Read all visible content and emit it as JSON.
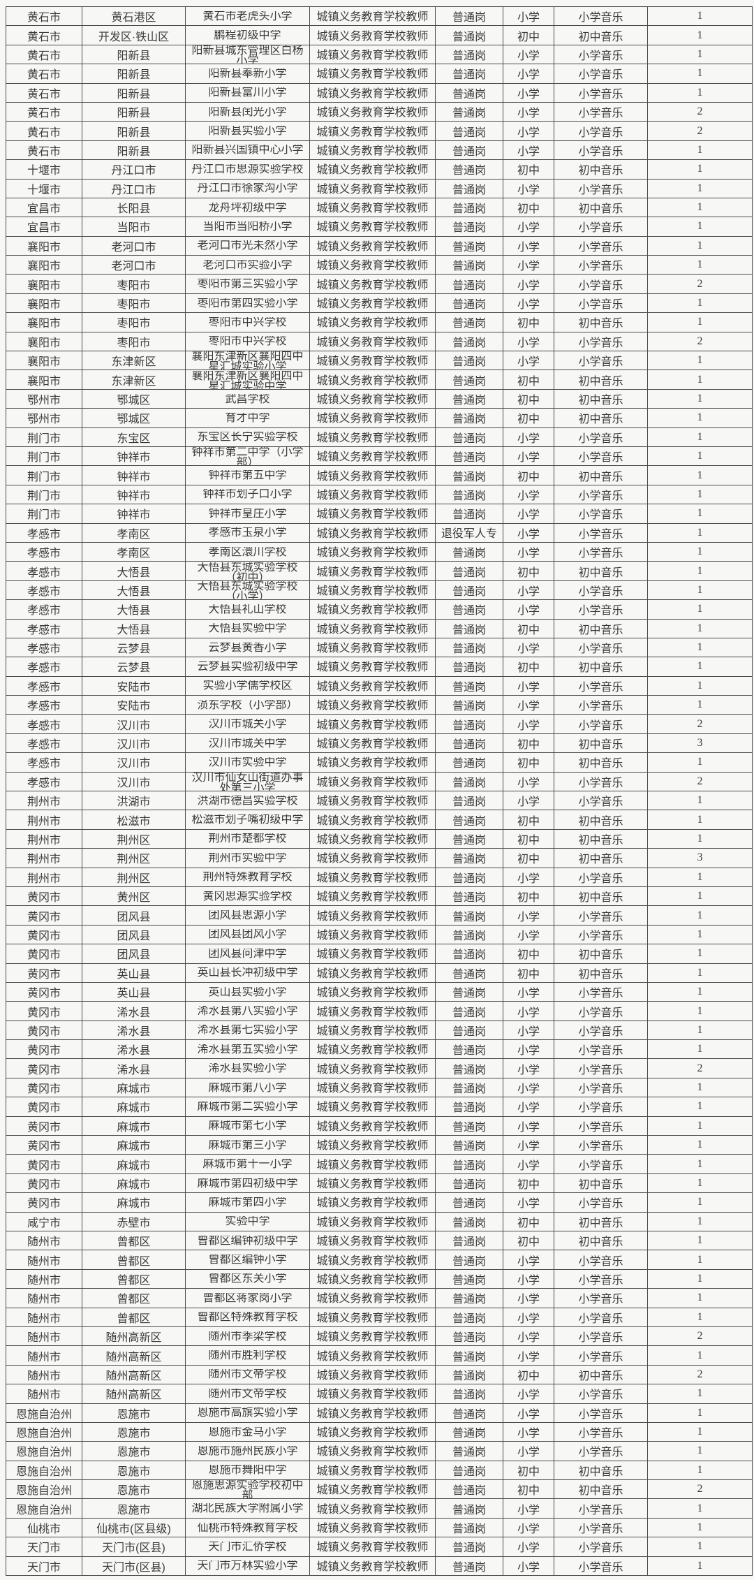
{
  "colors": {
    "background": "#f7f7f5",
    "grid_line": "#4b4b4b",
    "text": "#3a3a3a"
  },
  "table": {
    "column_keys": [
      "city",
      "district",
      "school",
      "category",
      "post_type",
      "level",
      "subject",
      "count"
    ],
    "rows": [
      [
        "黄石市",
        "黄石港区",
        "黄石市老虎头小学",
        "城镇义务教育学校教师岗",
        "普通岗",
        "小学",
        "小学音乐",
        "1"
      ],
      [
        "黄石市",
        "开发区·铁山区",
        "鹏程初级中学",
        "城镇义务教育学校教师岗",
        "普通岗",
        "初中",
        "初中音乐",
        "1"
      ],
      [
        "黄石市",
        "阳新县",
        "阳新县城东管理区白杨小学",
        "城镇义务教育学校教师岗",
        "普通岗",
        "小学",
        "小学音乐",
        "1"
      ],
      [
        "黄石市",
        "阳新县",
        "阳新县奉新小学",
        "城镇义务教育学校教师岗",
        "普通岗",
        "小学",
        "小学音乐",
        "1"
      ],
      [
        "黄石市",
        "阳新县",
        "阳新县富川小学",
        "城镇义务教育学校教师岗",
        "普通岗",
        "小学",
        "小学音乐",
        "1"
      ],
      [
        "黄石市",
        "阳新县",
        "阳新县闰光小学",
        "城镇义务教育学校教师岗",
        "普通岗",
        "小学",
        "小学音乐",
        "2"
      ],
      [
        "黄石市",
        "阳新县",
        "阳新县实验小学",
        "城镇义务教育学校教师岗",
        "普通岗",
        "小学",
        "小学音乐",
        "2"
      ],
      [
        "黄石市",
        "阳新县",
        "阳新县兴国镇中心小学",
        "城镇义务教育学校教师岗",
        "普通岗",
        "小学",
        "小学音乐",
        "1"
      ],
      [
        "十堰市",
        "丹江口市",
        "丹江口市思源实验学校",
        "城镇义务教育学校教师岗",
        "普通岗",
        "初中",
        "初中音乐",
        "1"
      ],
      [
        "十堰市",
        "丹江口市",
        "丹江口市徐家沟小学",
        "城镇义务教育学校教师岗",
        "普通岗",
        "小学",
        "小学音乐",
        "1"
      ],
      [
        "宜昌市",
        "长阳县",
        "龙舟坪初级中学",
        "城镇义务教育学校教师岗",
        "普通岗",
        "初中",
        "初中音乐",
        "1"
      ],
      [
        "宜昌市",
        "当阳市",
        "当阳市当阳桥小学",
        "城镇义务教育学校教师岗",
        "普通岗",
        "小学",
        "小学音乐",
        "1"
      ],
      [
        "襄阳市",
        "老河口市",
        "老河口市光未然小学",
        "城镇义务教育学校教师岗",
        "普通岗",
        "小学",
        "小学音乐",
        "1"
      ],
      [
        "襄阳市",
        "老河口市",
        "老河口市实验小学",
        "城镇义务教育学校教师岗",
        "普通岗",
        "小学",
        "小学音乐",
        "1"
      ],
      [
        "襄阳市",
        "枣阳市",
        "枣阳市第三实验小学",
        "城镇义务教育学校教师岗",
        "普通岗",
        "小学",
        "小学音乐",
        "2"
      ],
      [
        "襄阳市",
        "枣阳市",
        "枣阳市第四实验小学",
        "城镇义务教育学校教师岗",
        "普通岗",
        "小学",
        "小学音乐",
        "1"
      ],
      [
        "襄阳市",
        "枣阳市",
        "枣阳市中兴学校",
        "城镇义务教育学校教师岗",
        "普通岗",
        "初中",
        "初中音乐",
        "1"
      ],
      [
        "襄阳市",
        "枣阳市",
        "枣阳市中兴学校",
        "城镇义务教育学校教师岗",
        "普通岗",
        "小学",
        "小学音乐",
        "2"
      ],
      [
        "襄阳市",
        "东津新区",
        "襄阳东津新区襄阳四中星汇城实验小学",
        "城镇义务教育学校教师岗",
        "普通岗",
        "小学",
        "小学音乐",
        "1"
      ],
      [
        "襄阳市",
        "东津新区",
        "襄阳东津新区襄阳四中星汇城实验中学",
        "城镇义务教育学校教师岗",
        "普通岗",
        "初中",
        "初中音乐",
        "1"
      ],
      [
        "鄂州市",
        "鄂城区",
        "武昌学校",
        "城镇义务教育学校教师岗",
        "普通岗",
        "初中",
        "初中音乐",
        "1"
      ],
      [
        "鄂州市",
        "鄂城区",
        "育才中学",
        "城镇义务教育学校教师岗",
        "普通岗",
        "初中",
        "初中音乐",
        "1"
      ],
      [
        "荆门市",
        "东宝区",
        "东宝区长宁实验学校",
        "城镇义务教育学校教师岗",
        "普通岗",
        "小学",
        "小学音乐",
        "1"
      ],
      [
        "荆门市",
        "钟祥市",
        "钟祥市第二中学（小学部）",
        "城镇义务教育学校教师岗",
        "普通岗",
        "小学",
        "小学音乐",
        "1"
      ],
      [
        "荆门市",
        "钟祥市",
        "钟祥市第五中学",
        "城镇义务教育学校教师岗",
        "普通岗",
        "初中",
        "初中音乐",
        "1"
      ],
      [
        "荆门市",
        "钟祥市",
        "钟祥市划子口小学",
        "城镇义务教育学校教师岗",
        "普通岗",
        "小学",
        "小学音乐",
        "1"
      ],
      [
        "荆门市",
        "钟祥市",
        "钟祥市皇庄小学",
        "城镇义务教育学校教师岗",
        "普通岗",
        "小学",
        "小学音乐",
        "1"
      ],
      [
        "孝感市",
        "孝南区",
        "孝感市玉泉小学",
        "城镇义务教育学校教师岗",
        "退役军人专岗",
        "小学",
        "小学音乐",
        "1"
      ],
      [
        "孝感市",
        "孝南区",
        "孝南区澴川学校",
        "城镇义务教育学校教师岗",
        "普通岗",
        "小学",
        "小学音乐",
        "1"
      ],
      [
        "孝感市",
        "大悟县",
        "大悟县东城实验学校（初中）",
        "城镇义务教育学校教师岗",
        "普通岗",
        "初中",
        "初中音乐",
        "1"
      ],
      [
        "孝感市",
        "大悟县",
        "大悟县东城实验学校（小学）",
        "城镇义务教育学校教师岗",
        "普通岗",
        "小学",
        "小学音乐",
        "1"
      ],
      [
        "孝感市",
        "大悟县",
        "大悟县礼山学校",
        "城镇义务教育学校教师岗",
        "普通岗",
        "小学",
        "小学音乐",
        "1"
      ],
      [
        "孝感市",
        "大悟县",
        "大悟县实验中学",
        "城镇义务教育学校教师岗",
        "普通岗",
        "初中",
        "初中音乐",
        "1"
      ],
      [
        "孝感市",
        "云梦县",
        "云梦县黄香小学",
        "城镇义务教育学校教师岗",
        "普通岗",
        "小学",
        "小学音乐",
        "1"
      ],
      [
        "孝感市",
        "云梦县",
        "云梦县实验初级中学",
        "城镇义务教育学校教师岗",
        "普通岗",
        "初中",
        "初中音乐",
        "1"
      ],
      [
        "孝感市",
        "安陆市",
        "实验小学儒学校区",
        "城镇义务教育学校教师岗",
        "普通岗",
        "小学",
        "小学音乐",
        "1"
      ],
      [
        "孝感市",
        "安陆市",
        "涢东学校（小学部）",
        "城镇义务教育学校教师岗",
        "普通岗",
        "小学",
        "小学音乐",
        "1"
      ],
      [
        "孝感市",
        "汉川市",
        "汉川市城关小学",
        "城镇义务教育学校教师岗",
        "普通岗",
        "小学",
        "小学音乐",
        "2"
      ],
      [
        "孝感市",
        "汉川市",
        "汉川市城关中学",
        "城镇义务教育学校教师岗",
        "普通岗",
        "初中",
        "初中音乐",
        "3"
      ],
      [
        "孝感市",
        "汉川市",
        "汉川市实验中学",
        "城镇义务教育学校教师岗",
        "普通岗",
        "初中",
        "初中音乐",
        "1"
      ],
      [
        "孝感市",
        "汉川市",
        "汉川市仙女山街道办事处第三小学",
        "城镇义务教育学校教师岗",
        "普通岗",
        "小学",
        "小学音乐",
        "2"
      ],
      [
        "荆州市",
        "洪湖市",
        "洪湖市德昌实验学校",
        "城镇义务教育学校教师岗",
        "普通岗",
        "小学",
        "小学音乐",
        "1"
      ],
      [
        "荆州市",
        "松滋市",
        "松滋市划子嘴初级中学",
        "城镇义务教育学校教师岗",
        "普通岗",
        "初中",
        "初中音乐",
        "1"
      ],
      [
        "荆州市",
        "荆州区",
        "荆州市楚都学校",
        "城镇义务教育学校教师岗",
        "普通岗",
        "初中",
        "初中音乐",
        "1"
      ],
      [
        "荆州市",
        "荆州区",
        "荆州市实验中学",
        "城镇义务教育学校教师岗",
        "普通岗",
        "初中",
        "初中音乐",
        "3"
      ],
      [
        "荆州市",
        "荆州区",
        "荆州特殊教育学校",
        "城镇义务教育学校教师岗",
        "普通岗",
        "小学",
        "小学音乐",
        "1"
      ],
      [
        "黄冈市",
        "黄州区",
        "黄冈思源实验学校",
        "城镇义务教育学校教师岗",
        "普通岗",
        "初中",
        "初中音乐",
        "1"
      ],
      [
        "黄冈市",
        "团风县",
        "团风县思源小学",
        "城镇义务教育学校教师岗",
        "普通岗",
        "小学",
        "小学音乐",
        "1"
      ],
      [
        "黄冈市",
        "团风县",
        "团风县团风小学",
        "城镇义务教育学校教师岗",
        "普通岗",
        "小学",
        "小学音乐",
        "1"
      ],
      [
        "黄冈市",
        "团风县",
        "团风县问津中学",
        "城镇义务教育学校教师岗",
        "普通岗",
        "初中",
        "初中音乐",
        "1"
      ],
      [
        "黄冈市",
        "英山县",
        "英山县长冲初级中学",
        "城镇义务教育学校教师岗",
        "普通岗",
        "初中",
        "初中音乐",
        "1"
      ],
      [
        "黄冈市",
        "英山县",
        "英山县实验小学",
        "城镇义务教育学校教师岗",
        "普通岗",
        "小学",
        "小学音乐",
        "1"
      ],
      [
        "黄冈市",
        "浠水县",
        "浠水县第八实验小学",
        "城镇义务教育学校教师岗",
        "普通岗",
        "小学",
        "小学音乐",
        "1"
      ],
      [
        "黄冈市",
        "浠水县",
        "浠水县第七实验小学",
        "城镇义务教育学校教师岗",
        "普通岗",
        "小学",
        "小学音乐",
        "1"
      ],
      [
        "黄冈市",
        "浠水县",
        "浠水县第五实验小学",
        "城镇义务教育学校教师岗",
        "普通岗",
        "小学",
        "小学音乐",
        "1"
      ],
      [
        "黄冈市",
        "浠水县",
        "浠水县实验小学",
        "城镇义务教育学校教师岗",
        "普通岗",
        "小学",
        "小学音乐",
        "2"
      ],
      [
        "黄冈市",
        "麻城市",
        "麻城市第八小学",
        "城镇义务教育学校教师岗",
        "普通岗",
        "小学",
        "小学音乐",
        "1"
      ],
      [
        "黄冈市",
        "麻城市",
        "麻城市第二实验小学",
        "城镇义务教育学校教师岗",
        "普通岗",
        "小学",
        "小学音乐",
        "1"
      ],
      [
        "黄冈市",
        "麻城市",
        "麻城市第七小学",
        "城镇义务教育学校教师岗",
        "普通岗",
        "小学",
        "小学音乐",
        "1"
      ],
      [
        "黄冈市",
        "麻城市",
        "麻城市第三小学",
        "城镇义务教育学校教师岗",
        "普通岗",
        "小学",
        "小学音乐",
        "1"
      ],
      [
        "黄冈市",
        "麻城市",
        "麻城市第十一小学",
        "城镇义务教育学校教师岗",
        "普通岗",
        "小学",
        "小学音乐",
        "1"
      ],
      [
        "黄冈市",
        "麻城市",
        "麻城市第四初级中学",
        "城镇义务教育学校教师岗",
        "普通岗",
        "初中",
        "初中音乐",
        "1"
      ],
      [
        "黄冈市",
        "麻城市",
        "麻城市第四小学",
        "城镇义务教育学校教师岗",
        "普通岗",
        "小学",
        "小学音乐",
        "1"
      ],
      [
        "咸宁市",
        "赤壁市",
        "实验中学",
        "城镇义务教育学校教师岗",
        "普通岗",
        "初中",
        "初中音乐",
        "1"
      ],
      [
        "随州市",
        "曾都区",
        "曾都区编钟初级中学",
        "城镇义务教育学校教师岗",
        "普通岗",
        "初中",
        "初中音乐",
        "1"
      ],
      [
        "随州市",
        "曾都区",
        "曾都区编钟小学",
        "城镇义务教育学校教师岗",
        "普通岗",
        "小学",
        "小学音乐",
        "1"
      ],
      [
        "随州市",
        "曾都区",
        "曾都区东关小学",
        "城镇义务教育学校教师岗",
        "普通岗",
        "小学",
        "小学音乐",
        "1"
      ],
      [
        "随州市",
        "曾都区",
        "曾都区蒋家岗小学",
        "城镇义务教育学校教师岗",
        "普通岗",
        "小学",
        "小学音乐",
        "1"
      ],
      [
        "随州市",
        "曾都区",
        "曾都区特殊教育学校",
        "城镇义务教育学校教师岗",
        "普通岗",
        "小学",
        "小学音乐",
        "1"
      ],
      [
        "随州市",
        "随州高新区",
        "随州市季梁学校",
        "城镇义务教育学校教师岗",
        "普通岗",
        "小学",
        "小学音乐",
        "2"
      ],
      [
        "随州市",
        "随州高新区",
        "随州市胜利学校",
        "城镇义务教育学校教师岗",
        "普通岗",
        "小学",
        "小学音乐",
        "1"
      ],
      [
        "随州市",
        "随州高新区",
        "随州市文帝学校",
        "城镇义务教育学校教师岗",
        "普通岗",
        "初中",
        "初中音乐",
        "2"
      ],
      [
        "随州市",
        "随州高新区",
        "随州市文帝学校",
        "城镇义务教育学校教师岗",
        "普通岗",
        "小学",
        "小学音乐",
        "1"
      ],
      [
        "恩施自治州",
        "恩施市",
        "恩施市高旗实验小学",
        "城镇义务教育学校教师岗",
        "普通岗",
        "小学",
        "小学音乐",
        "1"
      ],
      [
        "恩施自治州",
        "恩施市",
        "恩施市金马小学",
        "城镇义务教育学校教师岗",
        "普通岗",
        "小学",
        "小学音乐",
        "1"
      ],
      [
        "恩施自治州",
        "恩施市",
        "恩施市施州民族小学",
        "城镇义务教育学校教师岗",
        "普通岗",
        "小学",
        "小学音乐",
        "1"
      ],
      [
        "恩施自治州",
        "恩施市",
        "恩施市舞阳中学",
        "城镇义务教育学校教师岗",
        "普通岗",
        "初中",
        "初中音乐",
        "1"
      ],
      [
        "恩施自治州",
        "恩施市",
        "恩施思源实验学校初中部",
        "城镇义务教育学校教师岗",
        "普通岗",
        "初中",
        "初中音乐",
        "2"
      ],
      [
        "恩施自治州",
        "恩施市",
        "湖北民族大学附属小学",
        "城镇义务教育学校教师岗",
        "普通岗",
        "小学",
        "小学音乐",
        "1"
      ],
      [
        "仙桃市",
        "仙桃市(区县级)",
        "仙桃市特殊教育学校",
        "城镇义务教育学校教师岗",
        "普通岗",
        "小学",
        "小学音乐",
        "1"
      ],
      [
        "天门市",
        "天门市(区县)",
        "天门市汇侨学校",
        "城镇义务教育学校教师岗",
        "普通岗",
        "小学",
        "小学音乐",
        "1"
      ],
      [
        "天门市",
        "天门市(区县)",
        "天门市万林实验小学",
        "城镇义务教育学校教师岗",
        "普通岗",
        "小学",
        "小学音乐",
        "1"
      ]
    ]
  }
}
